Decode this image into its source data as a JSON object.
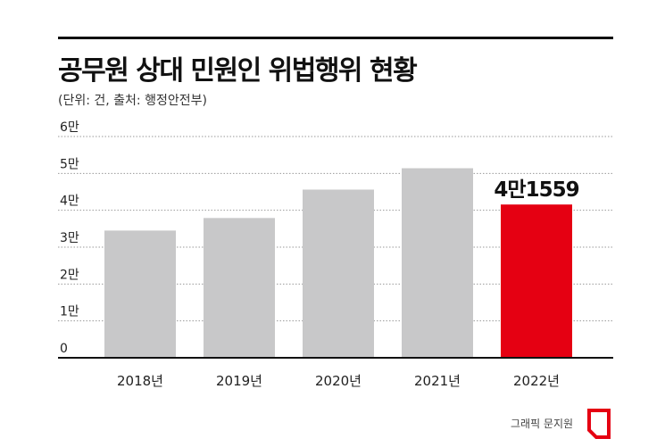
{
  "title": "공무원 상대 민원인 위법행위 현황",
  "subtitle": "(단위: 건, 출처: 행정안전부)",
  "credit": "그래픽 문지원",
  "colors": {
    "bar": "#c8c8c9",
    "highlight": "#e50012",
    "grid": "#9a9a9a",
    "axis": "#111111"
  },
  "chart_data": {
    "type": "bar",
    "categories": [
      "2018년",
      "2019년",
      "2020년",
      "2021년",
      "2022년"
    ],
    "values": [
      34500,
      37900,
      45600,
      51400,
      41559
    ],
    "highlight_index": 4,
    "data_labels": [
      "",
      "",
      "",
      "",
      "4만1559"
    ],
    "yticks": [
      0,
      10000,
      20000,
      30000,
      40000,
      50000,
      60000
    ],
    "ytick_labels": [
      "0",
      "1만",
      "2만",
      "3만",
      "4만",
      "5만",
      "6만"
    ],
    "ylim": [
      0,
      60000
    ],
    "grid": true,
    "xlabel": "",
    "ylabel": ""
  }
}
